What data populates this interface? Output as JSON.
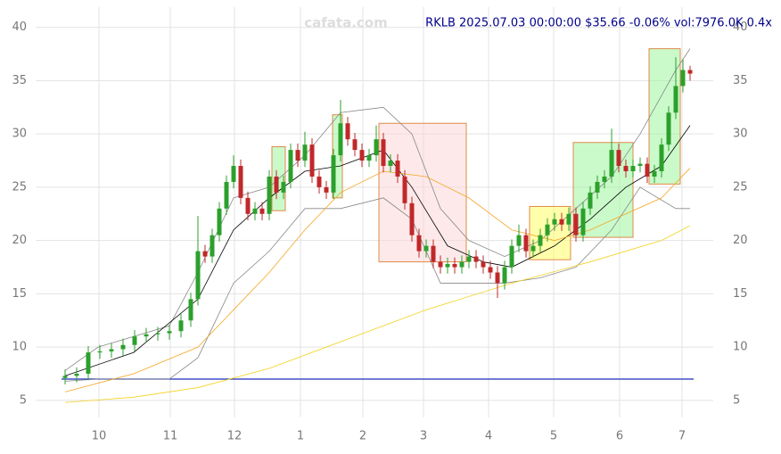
{
  "chart_data": {
    "type": "candlestick",
    "title": "RKLB 2025.07.03 00:00:00 $35.66 -0.06% vol:7976.0K 0.4x",
    "watermark": "cafata.com",
    "xlim": [
      0,
      760
    ],
    "ylim": [
      3.4,
      41.9
    ],
    "xticks": [
      {
        "value": 71,
        "label": "10"
      },
      {
        "value": 151,
        "label": "11"
      },
      {
        "value": 223,
        "label": "12"
      },
      {
        "value": 297,
        "label": "1"
      },
      {
        "value": 367,
        "label": "2"
      },
      {
        "value": 435,
        "label": "3"
      },
      {
        "value": 508,
        "label": "4"
      },
      {
        "value": 581,
        "label": "5"
      },
      {
        "value": 655,
        "label": "6"
      },
      {
        "value": 725,
        "label": "7"
      }
    ],
    "yticks": [
      5,
      10,
      15,
      20,
      25,
      30,
      35,
      40
    ],
    "grid": true,
    "up_color": "#2ca02c",
    "down_color": "#c0282a",
    "x": [
      33,
      46,
      59,
      72,
      85,
      98,
      111,
      124,
      137,
      150,
      163,
      174,
      182,
      190,
      198,
      206,
      214,
      222,
      230,
      238,
      246,
      254,
      262,
      270,
      278,
      286,
      294,
      302,
      310,
      318,
      326,
      334,
      342,
      350,
      358,
      366,
      374,
      382,
      390,
      398,
      406,
      414,
      422,
      430,
      438,
      446,
      454,
      462,
      470,
      478,
      486,
      494,
      502,
      510,
      518,
      526,
      534,
      542,
      550,
      558,
      566,
      574,
      582,
      590,
      598,
      606,
      614,
      622,
      630,
      638,
      646,
      654,
      662,
      670,
      678,
      686,
      694,
      702,
      710,
      718,
      726,
      734
    ],
    "open": [
      7.1,
      7.3,
      7.5,
      9.5,
      9.6,
      9.8,
      10.2,
      11.0,
      11.2,
      11.3,
      11.5,
      12.5,
      14.5,
      19.0,
      18.5,
      20.5,
      23.0,
      25.5,
      27.0,
      24.0,
      22.5,
      23.0,
      22.5,
      26.0,
      24.5,
      25.5,
      28.5,
      27.5,
      29.0,
      26.0,
      25.0,
      24.5,
      28.0,
      31.0,
      29.5,
      28.5,
      27.5,
      28.0,
      29.5,
      27.0,
      27.5,
      26.0,
      23.5,
      20.5,
      19.0,
      19.5,
      18.0,
      17.5,
      17.8,
      17.5,
      18.0,
      18.5,
      18.0,
      17.5,
      17.0,
      16.0,
      17.5,
      19.5,
      20.5,
      19.0,
      19.5,
      20.5,
      21.5,
      22.0,
      21.5,
      22.5,
      20.5,
      23.0,
      24.5,
      25.5,
      26.0,
      28.5,
      27.0,
      26.5,
      27.0,
      27.2,
      26.0,
      26.5,
      29.0,
      32.0,
      34.5,
      36.0
    ],
    "high": [
      7.9,
      8.1,
      10.1,
      10.2,
      10.4,
      10.8,
      11.6,
      11.8,
      11.9,
      12.1,
      13.1,
      15.1,
      22.3,
      19.6,
      21.1,
      23.6,
      26.1,
      28.0,
      27.6,
      24.6,
      23.6,
      23.6,
      26.6,
      26.6,
      26.1,
      29.1,
      29.1,
      30.2,
      29.6,
      26.6,
      25.6,
      28.6,
      33.2,
      31.6,
      30.1,
      29.1,
      28.6,
      30.8,
      30.1,
      28.1,
      28.1,
      26.6,
      24.1,
      21.1,
      20.1,
      20.1,
      18.6,
      18.4,
      18.4,
      18.6,
      19.1,
      19.1,
      18.6,
      18.1,
      17.6,
      18.1,
      20.1,
      21.5,
      21.1,
      20.1,
      21.1,
      22.1,
      22.6,
      22.6,
      23.1,
      23.1,
      23.6,
      25.1,
      26.1,
      26.6,
      30.5,
      29.1,
      27.6,
      27.6,
      27.8,
      27.8,
      27.1,
      29.6,
      32.6,
      37.2,
      37.0,
      36.4
    ],
    "low": [
      6.5,
      6.7,
      6.9,
      8.9,
      9.0,
      9.2,
      9.6,
      10.4,
      10.6,
      10.7,
      10.9,
      11.9,
      13.9,
      17.9,
      17.9,
      19.9,
      22.4,
      24.9,
      23.4,
      21.9,
      21.9,
      21.9,
      21.9,
      23.9,
      23.9,
      24.9,
      26.9,
      26.9,
      25.4,
      24.4,
      23.9,
      23.9,
      27.4,
      28.9,
      27.9,
      26.9,
      26.9,
      27.4,
      26.4,
      26.4,
      25.4,
      22.9,
      19.9,
      18.4,
      18.4,
      17.4,
      16.9,
      16.9,
      16.9,
      16.9,
      17.4,
      17.4,
      16.9,
      16.4,
      14.6,
      15.4,
      16.9,
      18.9,
      18.4,
      18.4,
      18.9,
      19.9,
      20.9,
      20.9,
      20.9,
      19.9,
      19.9,
      22.4,
      23.9,
      24.9,
      25.4,
      26.4,
      25.9,
      25.9,
      26.4,
      25.4,
      25.4,
      25.9,
      28.4,
      31.4,
      33.9,
      35.0
    ],
    "close": [
      7.3,
      7.5,
      9.5,
      9.6,
      9.8,
      10.2,
      11.0,
      11.2,
      11.3,
      11.5,
      12.5,
      14.5,
      19.0,
      18.5,
      20.5,
      23.0,
      25.5,
      27.0,
      24.0,
      22.5,
      23.0,
      22.5,
      26.0,
      24.5,
      25.5,
      28.5,
      27.5,
      29.0,
      26.0,
      25.0,
      24.5,
      28.0,
      31.0,
      29.5,
      28.5,
      27.5,
      28.0,
      29.5,
      27.0,
      27.5,
      26.0,
      23.5,
      20.5,
      19.0,
      19.5,
      18.0,
      17.5,
      17.8,
      17.5,
      18.0,
      18.5,
      18.0,
      17.5,
      17.0,
      16.0,
      17.5,
      19.5,
      20.5,
      19.0,
      19.5,
      20.5,
      21.5,
      22.0,
      21.5,
      22.5,
      20.5,
      23.0,
      24.5,
      25.5,
      26.0,
      28.5,
      27.0,
      26.5,
      27.0,
      27.2,
      26.0,
      26.5,
      29.0,
      32.0,
      34.5,
      36.0,
      35.66
    ],
    "overlays": [
      {
        "color": "#888888",
        "x": [
          33,
          70,
          150,
          182,
          222,
          262,
          302,
          342,
          390,
          422,
          454,
          486,
          526,
          566,
          606,
          646,
          678,
          718,
          734
        ],
        "values": [
          7.8,
          10,
          12,
          17,
          24,
          25,
          28,
          32,
          32.5,
          30,
          23,
          20,
          18.5,
          20,
          23,
          26,
          30,
          36,
          38
        ]
      },
      {
        "color": "#888888",
        "x": [
          33,
          70,
          150,
          182,
          222,
          262,
          302,
          342,
          390,
          422,
          454,
          486,
          526,
          566,
          606,
          646,
          678,
          718,
          734
        ],
        "values": [
          6.8,
          7,
          7,
          9,
          16,
          19,
          23,
          23,
          24,
          22,
          16,
          16,
          16,
          16.5,
          17.5,
          21,
          25,
          23,
          23
        ]
      },
      {
        "color": "#000000",
        "x": [
          33,
          110,
          182,
          222,
          262,
          302,
          342,
          390,
          422,
          462,
          502,
          534,
          582,
          622,
          662,
          702,
          734
        ],
        "values": [
          7.3,
          9.5,
          14.5,
          21,
          24,
          26.5,
          27,
          28.5,
          25,
          19.5,
          18,
          17.5,
          19.5,
          22,
          25,
          27,
          30.8
        ]
      },
      {
        "color": "#f5a623",
        "x": [
          33,
          110,
          182,
          222,
          262,
          302,
          342,
          390,
          438,
          486,
          534,
          582,
          622,
          662,
          702,
          734
        ],
        "values": [
          5.8,
          7.5,
          10,
          13.5,
          17,
          21,
          24.5,
          26.5,
          26,
          24,
          21,
          20,
          21,
          22.5,
          24,
          26.8
        ]
      },
      {
        "color": "#f2d31b",
        "x": [
          33,
          110,
          182,
          262,
          342,
          438,
          534,
          622,
          702,
          734
        ],
        "values": [
          4.8,
          5.3,
          6.2,
          8,
          10.5,
          13.5,
          16,
          18,
          20,
          21.4
        ]
      }
    ],
    "boxes": [
      {
        "fill": "#9ef59e",
        "x0": 265,
        "x1": 280,
        "y0": 22.8,
        "y1": 28.8
      },
      {
        "fill": "#9ef59e",
        "x0": 333,
        "x1": 344,
        "y0": 24.0,
        "y1": 31.8
      },
      {
        "fill": "#fbd7d7",
        "x0": 385,
        "x1": 483,
        "y0": 18.0,
        "y1": 31.0
      },
      {
        "fill": "#ffff66",
        "x0": 554,
        "x1": 600,
        "y0": 18.2,
        "y1": 23.2
      },
      {
        "fill": "#9ef59e",
        "x0": 603,
        "x1": 670,
        "y0": 20.3,
        "y1": 29.2
      },
      {
        "fill": "#9ef59e",
        "x0": 688,
        "x1": 723,
        "y0": 25.3,
        "y1": 38.0
      }
    ],
    "hlines": [
      7
    ]
  }
}
